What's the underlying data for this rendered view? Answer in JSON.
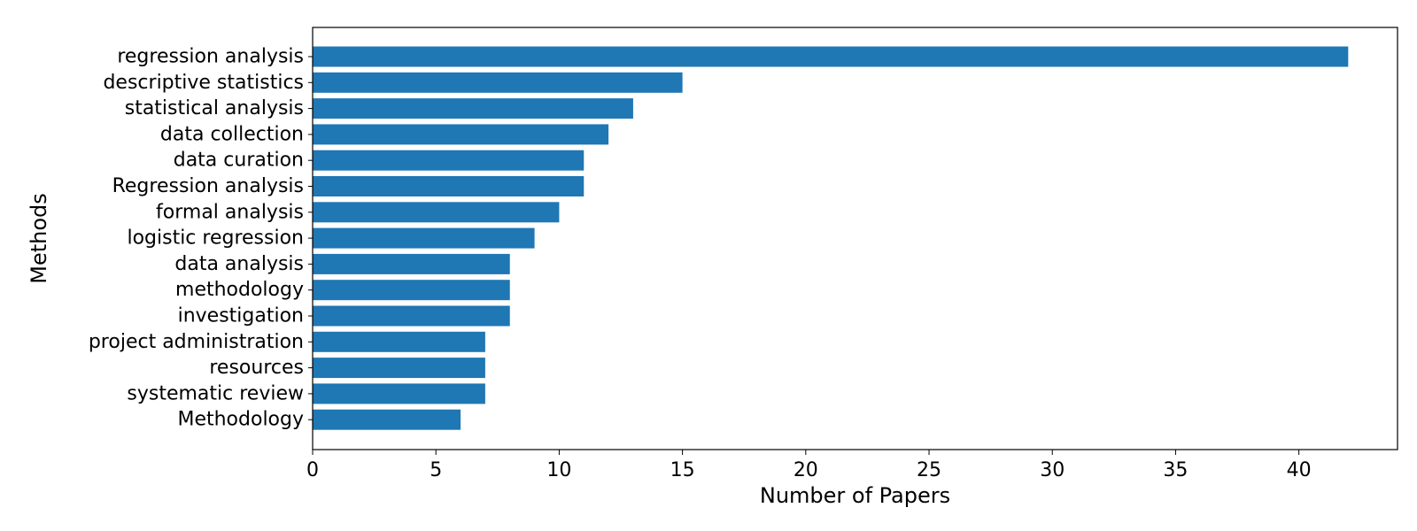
{
  "chart_data": {
    "type": "bar",
    "orientation": "horizontal",
    "categories": [
      "regression analysis",
      "descriptive statistics",
      "statistical analysis",
      "data collection",
      "data curation",
      "Regression analysis",
      "formal analysis",
      "logistic regression",
      "data analysis",
      "methodology",
      "investigation",
      "project administration",
      "resources",
      "systematic review",
      "Methodology"
    ],
    "values": [
      42,
      15,
      13,
      12,
      11,
      11,
      10,
      9,
      8,
      8,
      8,
      7,
      7,
      7,
      6
    ],
    "title": "",
    "xlabel": "Number of Papers",
    "ylabel": "Methods",
    "xlim": [
      0,
      44
    ],
    "xticks": [
      0,
      5,
      10,
      15,
      20,
      25,
      30,
      35,
      40
    ],
    "grid": false,
    "legend": "none",
    "colors": {
      "bar": "#1f77b4",
      "axis": "#000000"
    }
  }
}
